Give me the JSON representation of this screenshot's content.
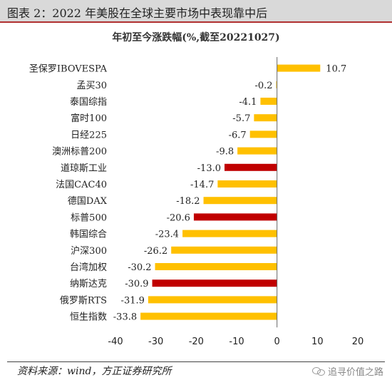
{
  "header": {
    "title": "图表 2：2022 年美股在全球主要市场中表现靠中后"
  },
  "footer": {
    "source": "资料来源：wind，方正证券研究所",
    "watermark": "追寻价值之路"
  },
  "colors": {
    "orange": "#ffc000",
    "red": "#c00000"
  },
  "chart_data": {
    "type": "bar",
    "orientation": "horizontal",
    "title": "年初至今涨跌幅(%,截至20221027)",
    "categories": [
      "圣保罗IBOVESPA",
      "孟买30",
      "泰国综指",
      "富时100",
      "日经225",
      "澳洲标普200",
      "道琼斯工业",
      "法国CAC40",
      "德国DAX",
      "标普500",
      "韩国综合",
      "沪深300",
      "台湾加权",
      "纳斯达克",
      "俄罗斯RTS",
      "恒生指数"
    ],
    "values": [
      10.7,
      -0.2,
      -4.1,
      -5.7,
      -6.7,
      -9.8,
      -13.0,
      -14.7,
      -18.2,
      -20.6,
      -23.4,
      -26.2,
      -30.2,
      -30.9,
      -31.9,
      -33.8
    ],
    "value_labels": [
      "10.7",
      "-0.2",
      "-4.1",
      "-5.7",
      "-6.7",
      "-9.8",
      "-13.0",
      "-14.7",
      "-18.2",
      "-20.6",
      "-23.4",
      "-26.2",
      "-30.2",
      "-30.9",
      "-31.9",
      "-33.8"
    ],
    "highlight": [
      "道琼斯工业",
      "标普500",
      "纳斯达克"
    ],
    "xlim": [
      -40,
      20
    ],
    "xticks": [
      -40,
      -30,
      -20,
      -10,
      0,
      10,
      20
    ],
    "xtick_labels": [
      "-40",
      "-30",
      "-20",
      "-10",
      "0",
      "10",
      "20"
    ],
    "grid": false,
    "legend": "none"
  }
}
